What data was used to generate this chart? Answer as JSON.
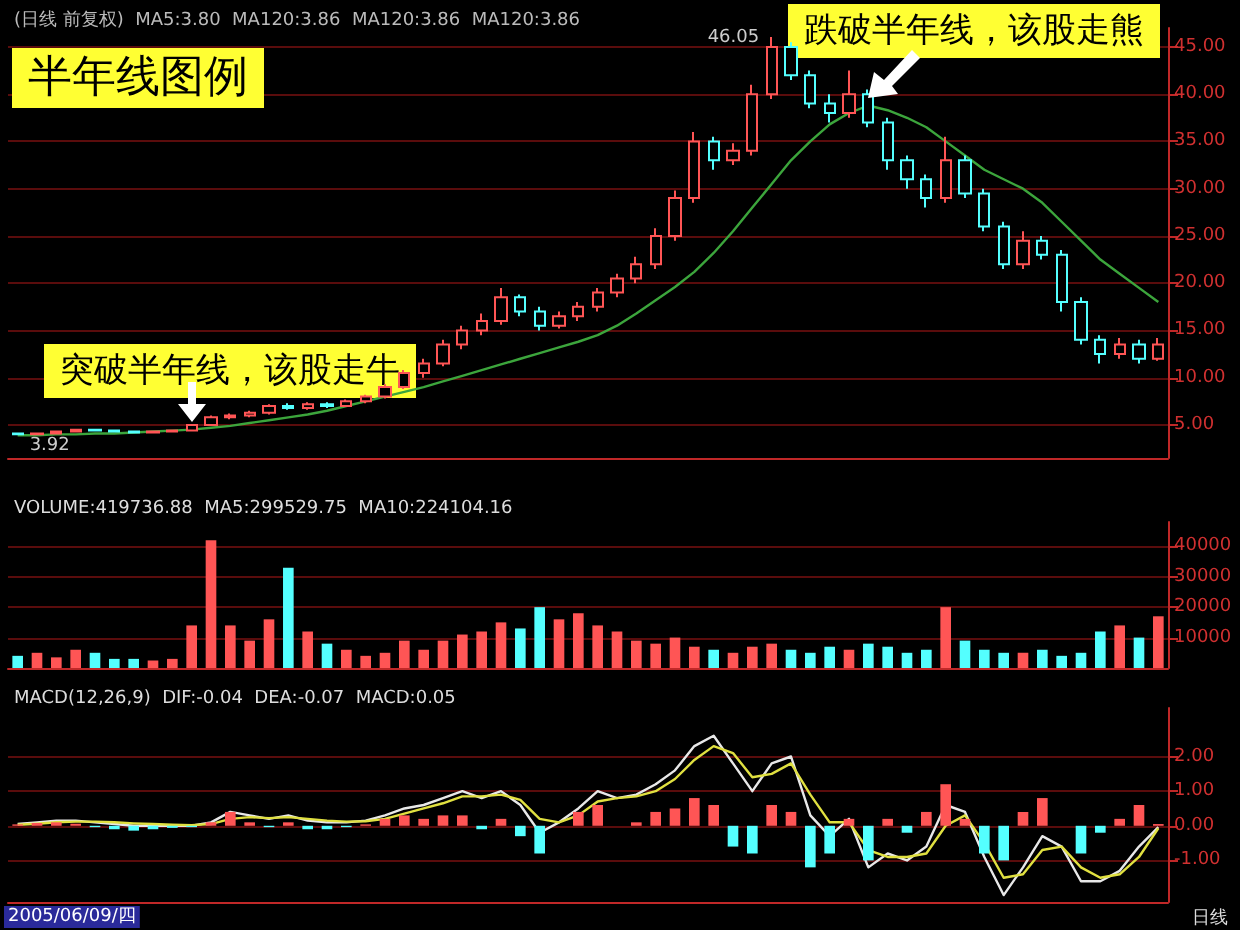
{
  "chart_data": [
    {
      "type": "candlestick",
      "title": "半年线图例",
      "subtitle": "(日线 前复权)  MA5:3.80  MA120:3.86  MA120:3.86  MA120:3.86",
      "categories": [
        null,
        null,
        null,
        null,
        null,
        null,
        null,
        null,
        null,
        null,
        null,
        null,
        null,
        null,
        null,
        null,
        null,
        null,
        null,
        null,
        null,
        null,
        null,
        null,
        null,
        null,
        null,
        null,
        null,
        null,
        null,
        null,
        null,
        null,
        null,
        null,
        null,
        null,
        null,
        null,
        null,
        null,
        null,
        null,
        null,
        null,
        null,
        null,
        null,
        null,
        null,
        null,
        null,
        null,
        null,
        null,
        null,
        null,
        null,
        null
      ],
      "ohlc": [
        [
          4.1,
          4.2,
          3.92,
          4.0
        ],
        [
          4.0,
          4.2,
          3.95,
          4.1
        ],
        [
          4.1,
          4.4,
          4.0,
          4.3
        ],
        [
          4.3,
          4.6,
          4.2,
          4.5
        ],
        [
          4.5,
          4.6,
          4.3,
          4.4
        ],
        [
          4.4,
          4.5,
          4.2,
          4.3
        ],
        [
          4.3,
          4.4,
          4.1,
          4.2
        ],
        [
          4.2,
          4.4,
          4.1,
          4.3
        ],
        [
          4.3,
          4.5,
          4.2,
          4.4
        ],
        [
          4.4,
          5.1,
          4.3,
          5.0
        ],
        [
          5.0,
          6.0,
          4.9,
          5.8
        ],
        [
          5.8,
          6.2,
          5.6,
          6.0
        ],
        [
          6.0,
          6.5,
          5.8,
          6.3
        ],
        [
          6.3,
          7.2,
          6.1,
          7.0
        ],
        [
          7.0,
          7.3,
          6.6,
          6.8
        ],
        [
          6.8,
          7.4,
          6.6,
          7.2
        ],
        [
          7.2,
          7.4,
          6.8,
          7.0
        ],
        [
          7.0,
          7.7,
          6.9,
          7.5
        ],
        [
          7.5,
          8.2,
          7.3,
          8.0
        ],
        [
          8.0,
          9.3,
          7.8,
          9.0
        ],
        [
          9.0,
          10.8,
          8.8,
          10.5
        ],
        [
          10.5,
          12.0,
          10.0,
          11.5
        ],
        [
          11.5,
          14.0,
          11.2,
          13.5
        ],
        [
          13.5,
          15.5,
          13.0,
          15.0
        ],
        [
          15.0,
          16.8,
          14.5,
          16.0
        ],
        [
          16.0,
          19.5,
          15.6,
          18.5
        ],
        [
          18.5,
          18.8,
          16.5,
          17.0
        ],
        [
          17.0,
          17.5,
          15.0,
          15.5
        ],
        [
          15.5,
          17.0,
          15.2,
          16.5
        ],
        [
          16.5,
          18.0,
          16.0,
          17.5
        ],
        [
          17.5,
          19.5,
          17.0,
          19.0
        ],
        [
          19.0,
          21.0,
          18.5,
          20.5
        ],
        [
          20.5,
          22.8,
          20.0,
          22.0
        ],
        [
          22.0,
          25.8,
          21.5,
          25.0
        ],
        [
          25.0,
          29.8,
          24.5,
          29.0
        ],
        [
          29.0,
          36.0,
          28.5,
          35.0
        ],
        [
          35.0,
          35.5,
          32.0,
          33.0
        ],
        [
          33.0,
          34.8,
          32.5,
          34.0
        ],
        [
          34.0,
          41.0,
          33.5,
          40.0
        ],
        [
          40.0,
          46.05,
          39.5,
          45.0
        ],
        [
          45.0,
          45.5,
          41.5,
          42.0
        ],
        [
          42.0,
          42.5,
          38.5,
          39.0
        ],
        [
          39.0,
          40.0,
          37.0,
          38.0
        ],
        [
          38.0,
          42.5,
          37.5,
          40.0
        ],
        [
          40.0,
          40.5,
          36.5,
          37.0
        ],
        [
          37.0,
          37.5,
          32.0,
          33.0
        ],
        [
          33.0,
          33.5,
          30.0,
          31.0
        ],
        [
          31.0,
          31.5,
          28.0,
          29.0
        ],
        [
          29.0,
          35.5,
          28.5,
          33.0
        ],
        [
          33.0,
          33.5,
          29.0,
          29.5
        ],
        [
          29.5,
          30.0,
          25.5,
          26.0
        ],
        [
          26.0,
          26.5,
          21.5,
          22.0
        ],
        [
          22.0,
          25.5,
          21.5,
          24.5
        ],
        [
          24.5,
          25.0,
          22.5,
          23.0
        ],
        [
          23.0,
          23.5,
          17.0,
          18.0
        ],
        [
          18.0,
          18.5,
          13.5,
          14.0
        ],
        [
          14.0,
          14.5,
          11.5,
          12.5
        ],
        [
          12.5,
          14.2,
          12.0,
          13.5
        ],
        [
          13.5,
          14.0,
          11.5,
          12.0
        ],
        [
          12.0,
          14.2,
          11.8,
          13.5
        ]
      ],
      "colors": [
        "#54ffff",
        "#ff5555",
        "#ff5555",
        "#ff5555",
        "#54ffff",
        "#54ffff",
        "#54ffff",
        "#ff5555",
        "#ff5555",
        "#ff5555",
        "#ff5555",
        "#ff5555",
        "#ff5555",
        "#ff5555",
        "#54ffff",
        "#ff5555",
        "#54ffff",
        "#ff5555",
        "#ff5555",
        "#ff5555",
        "#ff5555",
        "#ff5555",
        "#ff5555",
        "#ff5555",
        "#ff5555",
        "#ff5555",
        "#54ffff",
        "#54ffff",
        "#ff5555",
        "#ff5555",
        "#ff5555",
        "#ff5555",
        "#ff5555",
        "#ff5555",
        "#ff5555",
        "#ff5555",
        "#54ffff",
        "#ff5555",
        "#ff5555",
        "#ff5555",
        "#54ffff",
        "#54ffff",
        "#54ffff",
        "#ff5555",
        "#54ffff",
        "#54ffff",
        "#54ffff",
        "#54ffff",
        "#ff5555",
        "#54ffff",
        "#54ffff",
        "#54ffff",
        "#ff5555",
        "#54ffff",
        "#54ffff",
        "#54ffff",
        "#54ffff",
        "#ff5555",
        "#54ffff",
        "#ff5555"
      ],
      "series": [
        {
          "type": "line",
          "color": "#3ca53c",
          "values": [
            3.9,
            3.9,
            4.0,
            4.0,
            4.1,
            4.1,
            4.2,
            4.3,
            4.4,
            4.5,
            4.7,
            4.9,
            5.2,
            5.5,
            5.8,
            6.1,
            6.5,
            7.0,
            7.5,
            8.0,
            8.5,
            9.0,
            9.6,
            10.2,
            10.8,
            11.4,
            12.0,
            12.6,
            13.2,
            13.8,
            14.5,
            15.5,
            16.8,
            18.2,
            19.6,
            21.2,
            23.2,
            25.5,
            28.0,
            30.5,
            33.0,
            35.0,
            36.8,
            38.0,
            38.8,
            38.3,
            37.5,
            36.5,
            35.0,
            33.5,
            32.0,
            31.0,
            30.0,
            28.5,
            26.5,
            24.5,
            22.5,
            21.0,
            19.5,
            18.0
          ]
        }
      ],
      "ylim": [
        1.5,
        47
      ],
      "yticks": [
        {
          "value": 5,
          "label": "5.00"
        },
        {
          "value": 10,
          "label": "10.00"
        },
        {
          "value": 15,
          "label": "15.00"
        },
        {
          "value": 20,
          "label": "20.00"
        },
        {
          "value": 25,
          "label": "25.00"
        },
        {
          "value": 30,
          "label": "30.00"
        },
        {
          "value": 35,
          "label": "35.00"
        },
        {
          "value": 40,
          "label": "40.00"
        },
        {
          "value": 45,
          "label": "45.00"
        }
      ],
      "grid": "y",
      "tick_labels": "y",
      "annotations": [
        "突破半年线，该股走牛",
        "跌破半年线，该股走熊",
        "46.05",
        "3.92"
      ]
    },
    {
      "type": "bar",
      "title": "VOLUME:419736.88  MA5:299529.75  MA10:224104.16",
      "categories": [
        null,
        null,
        null,
        null,
        null,
        null,
        null,
        null,
        null,
        null,
        null,
        null,
        null,
        null,
        null,
        null,
        null,
        null,
        null,
        null,
        null,
        null,
        null,
        null,
        null,
        null,
        null,
        null,
        null,
        null,
        null,
        null,
        null,
        null,
        null,
        null,
        null,
        null,
        null,
        null,
        null,
        null,
        null,
        null,
        null,
        null,
        null,
        null,
        null,
        null,
        null,
        null,
        null,
        null,
        null,
        null,
        null,
        null,
        null,
        null
      ],
      "values": [
        4000,
        5000,
        3500,
        6000,
        5000,
        3000,
        3000,
        2500,
        3000,
        14000,
        42000,
        14000,
        9000,
        16000,
        33000,
        12000,
        8000,
        6000,
        4000,
        5000,
        9000,
        6000,
        9000,
        11000,
        12000,
        15000,
        13000,
        20000,
        16000,
        18000,
        14000,
        12000,
        9000,
        8000,
        10000,
        7000,
        6000,
        5000,
        7000,
        8000,
        6000,
        5000,
        7000,
        6000,
        8000,
        7000,
        5000,
        6000,
        20000,
        9000,
        6000,
        5000,
        5000,
        6000,
        4000,
        5000,
        12000,
        14000,
        10000,
        17000
      ],
      "colors": [
        "#54ffff",
        "#ff5555",
        "#ff5555",
        "#ff5555",
        "#54ffff",
        "#54ffff",
        "#54ffff",
        "#ff5555",
        "#ff5555",
        "#ff5555",
        "#ff5555",
        "#ff5555",
        "#ff5555",
        "#ff5555",
        "#54ffff",
        "#ff5555",
        "#54ffff",
        "#ff5555",
        "#ff5555",
        "#ff5555",
        "#ff5555",
        "#ff5555",
        "#ff5555",
        "#ff5555",
        "#ff5555",
        "#ff5555",
        "#54ffff",
        "#54ffff",
        "#ff5555",
        "#ff5555",
        "#ff5555",
        "#ff5555",
        "#ff5555",
        "#ff5555",
        "#ff5555",
        "#ff5555",
        "#54ffff",
        "#ff5555",
        "#ff5555",
        "#ff5555",
        "#54ffff",
        "#54ffff",
        "#54ffff",
        "#ff5555",
        "#54ffff",
        "#54ffff",
        "#54ffff",
        "#54ffff",
        "#ff5555",
        "#54ffff",
        "#54ffff",
        "#54ffff",
        "#ff5555",
        "#54ffff",
        "#54ffff",
        "#54ffff",
        "#54ffff",
        "#ff5555",
        "#54ffff",
        "#ff5555"
      ],
      "ylim": [
        0,
        48000
      ],
      "yticks": [
        10000,
        20000,
        30000,
        40000
      ],
      "grid": "y",
      "tick_labels": "y"
    },
    {
      "type": "line",
      "title": "MACD(12,26,9)  DIF:-0.04  DEA:-0.07  MACD:0.05",
      "categories": [
        null,
        null,
        null,
        null,
        null,
        null,
        null,
        null,
        null,
        null,
        null,
        null,
        null,
        null,
        null,
        null,
        null,
        null,
        null,
        null,
        null,
        null,
        null,
        null,
        null,
        null,
        null,
        null,
        null,
        null,
        null,
        null,
        null,
        null,
        null,
        null,
        null,
        null,
        null,
        null,
        null,
        null,
        null,
        null,
        null,
        null,
        null,
        null,
        null,
        null,
        null,
        null,
        null,
        null,
        null,
        null,
        null,
        null,
        null,
        null
      ],
      "series": [
        {
          "type": "bar",
          "color": "#ff5555",
          "values": [
            0.04,
            0.08,
            0.1,
            0.06,
            null,
            null,
            null,
            null,
            null,
            null,
            0.1,
            0.4,
            0.1,
            null,
            0.1,
            null,
            null,
            null,
            0.04,
            0.2,
            0.3,
            0.2,
            0.3,
            0.3,
            null,
            0.2,
            null,
            null,
            null,
            0.4,
            0.6,
            null,
            0.1,
            0.4,
            0.5,
            0.8,
            0.6,
            null,
            null,
            0.6,
            0.4,
            null,
            null,
            0.2,
            null,
            0.2,
            null,
            0.4,
            1.2,
            0.2,
            null,
            null,
            0.4,
            0.8,
            null,
            null,
            null,
            0.2,
            0.6,
            0.05
          ]
        },
        {
          "type": "bar",
          "color": "#54ffff",
          "values": [
            null,
            null,
            null,
            null,
            -0.04,
            -0.1,
            -0.14,
            -0.1,
            -0.06,
            -0.04,
            null,
            null,
            null,
            -0.04,
            null,
            -0.1,
            -0.1,
            -0.04,
            null,
            null,
            null,
            null,
            null,
            null,
            -0.1,
            null,
            -0.3,
            -0.8,
            null,
            null,
            null,
            null,
            null,
            null,
            null,
            null,
            null,
            -0.6,
            -0.8,
            null,
            null,
            -1.2,
            -0.8,
            null,
            -1,
            null,
            -0.2,
            null,
            null,
            null,
            -0.8,
            -1,
            null,
            null,
            null,
            -0.8,
            -0.2,
            null,
            null,
            null
          ]
        },
        {
          "type": "line",
          "color": "#e8e8e8",
          "values": [
            0.05,
            0.1,
            0.15,
            0.15,
            0.1,
            0.05,
            0,
            0,
            0,
            0,
            0.1,
            0.4,
            0.3,
            0.2,
            0.3,
            0.15,
            0.1,
            0.1,
            0.15,
            0.3,
            0.5,
            0.6,
            0.8,
            1.0,
            0.8,
            1.0,
            0.6,
            -0.2,
            0.1,
            0.5,
            1.0,
            0.8,
            0.9,
            1.2,
            1.6,
            2.3,
            2.6,
            1.8,
            1.0,
            1.8,
            2.0,
            0.3,
            -0.3,
            0.2,
            -1.2,
            -0.8,
            -1.0,
            -0.6,
            0.6,
            0.4,
            -0.9,
            -2.0,
            -1.2,
            -0.3,
            -0.6,
            -1.6,
            -1.6,
            -1.3,
            -0.6,
            -0.04
          ]
        },
        {
          "type": "line",
          "color": "#e0e040",
          "values": [
            0.03,
            0.06,
            0.1,
            0.12,
            0.12,
            0.1,
            0.07,
            0.05,
            0.03,
            0.02,
            0.05,
            0.2,
            0.25,
            0.22,
            0.25,
            0.2,
            0.15,
            0.12,
            0.13,
            0.2,
            0.35,
            0.5,
            0.65,
            0.85,
            0.85,
            0.9,
            0.75,
            0.2,
            0.1,
            0.3,
            0.7,
            0.8,
            0.85,
            1.0,
            1.35,
            1.9,
            2.3,
            2.1,
            1.4,
            1.5,
            1.8,
            0.9,
            0.1,
            0.1,
            -0.7,
            -0.9,
            -0.9,
            -0.8,
            0.0,
            0.3,
            -0.5,
            -1.5,
            -1.4,
            -0.7,
            -0.6,
            -1.2,
            -1.5,
            -1.4,
            -0.9,
            -0.07
          ]
        }
      ],
      "ylim": [
        -2.2,
        3.4
      ],
      "yticks": [
        {
          "value": -1,
          "label": "-1.00"
        },
        {
          "value": 0,
          "label": "0.00"
        },
        {
          "value": 1,
          "label": "1.00"
        },
        {
          "value": 2,
          "label": "2.00"
        }
      ],
      "grid": "y",
      "tick_labels": "y",
      "annotations": [
        "2005/06/09/四",
        "日线"
      ]
    }
  ]
}
